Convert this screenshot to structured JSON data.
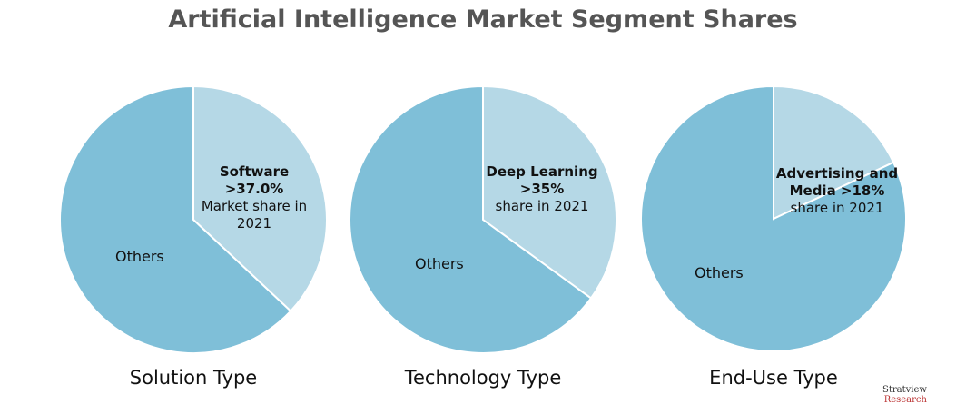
{
  "title": "Artificial Intelligence Market Segment Shares",
  "logo": {
    "name": "Stratview",
    "sub": "Research"
  },
  "chart_data": [
    {
      "type": "pie",
      "title": "Solution Type",
      "categories": [
        "Software >37.0%",
        "Others"
      ],
      "values": [
        37,
        63
      ],
      "annotation": "Market share in 2021",
      "colors": [
        "#b5d8e6",
        "#7fbfd8"
      ]
    },
    {
      "type": "pie",
      "title": "Technology Type",
      "categories": [
        "Deep Learning >35%",
        "Others"
      ],
      "values": [
        35,
        65
      ],
      "annotation": "share in 2021",
      "colors": [
        "#b5d8e6",
        "#7fbfd8"
      ]
    },
    {
      "type": "pie",
      "title": "End-Use Type",
      "categories": [
        "Advertising and Media >18%",
        "Others"
      ],
      "values": [
        18,
        82
      ],
      "annotation": "share in 2021",
      "colors": [
        "#b5d8e6",
        "#7fbfd8"
      ]
    }
  ]
}
